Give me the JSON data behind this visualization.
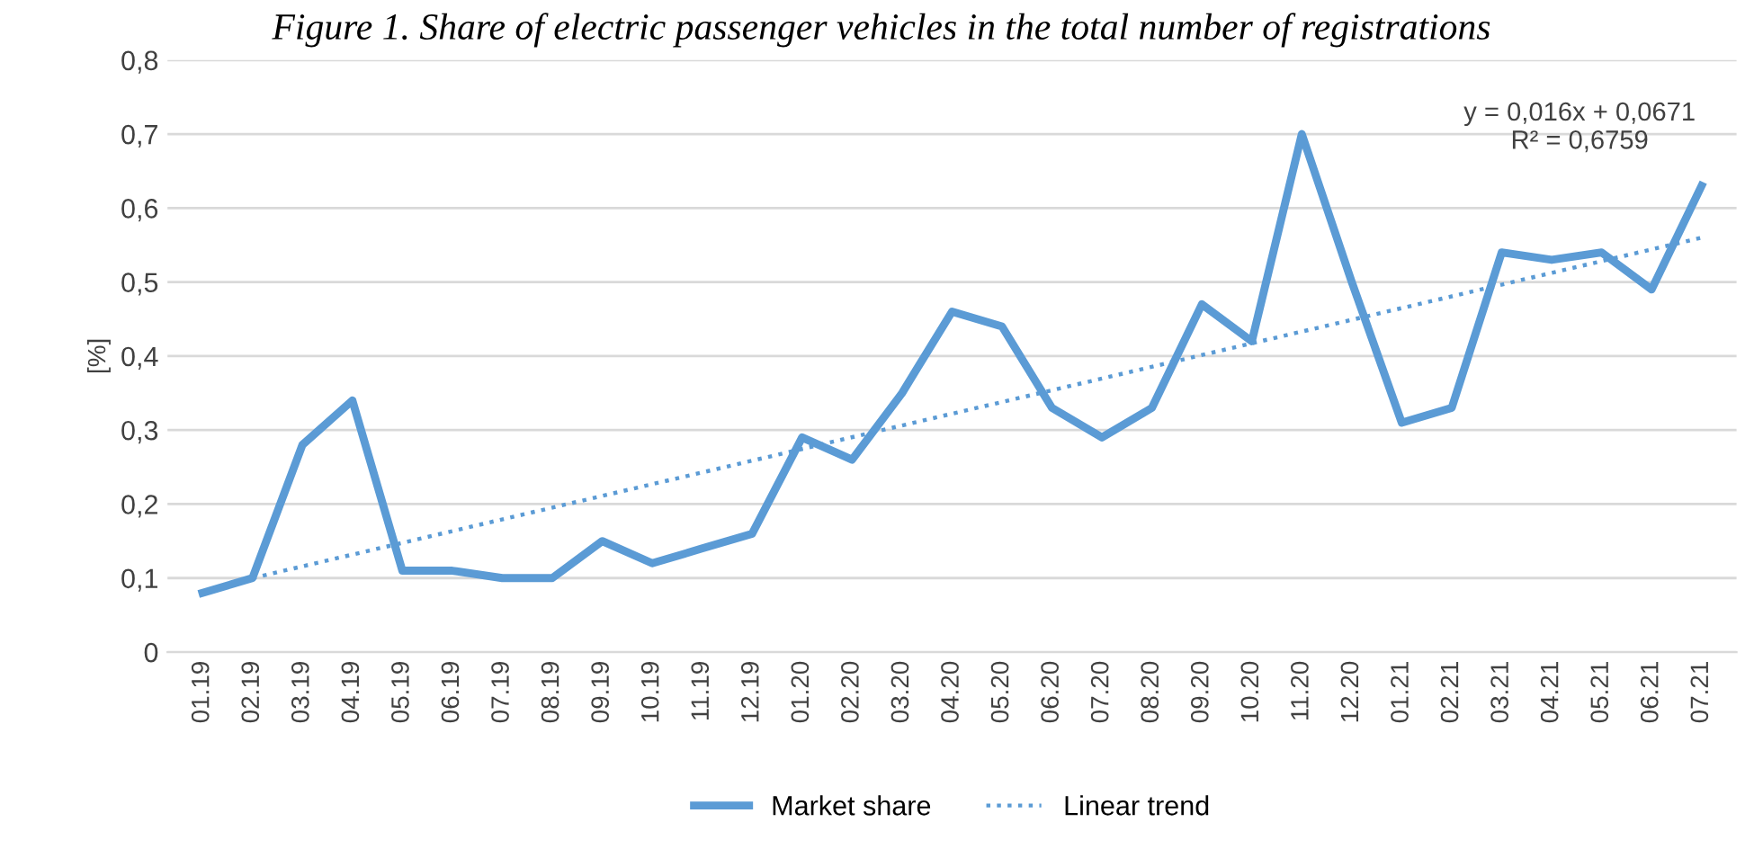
{
  "chart_data": {
    "type": "line",
    "title": "Figure 1. Share of electric passenger vehicles in the total number of registrations",
    "ylabel": "[%]",
    "categories": [
      "01.19",
      "02.19",
      "03.19",
      "04.19",
      "05.19",
      "06.19",
      "07.19",
      "08.19",
      "09.19",
      "10.19",
      "11.19",
      "12.19",
      "01.20",
      "02.20",
      "03.20",
      "04.20",
      "05.20",
      "06.20",
      "07.20",
      "08.20",
      "09.20",
      "10.20",
      "11.20",
      "12.20",
      "01.21",
      "02.21",
      "03.21",
      "04.21",
      "05.21",
      "06.21",
      "07.21"
    ],
    "series": [
      {
        "name": "Market share",
        "color": "#5b9bd5",
        "line_style": "solid",
        "values": [
          0.08,
          0.1,
          0.28,
          0.34,
          0.11,
          0.11,
          0.1,
          0.1,
          0.15,
          0.12,
          0.14,
          0.16,
          0.29,
          0.26,
          0.35,
          0.46,
          0.44,
          0.33,
          0.29,
          0.33,
          0.47,
          0.42,
          0.7,
          0.5,
          0.31,
          0.33,
          0.54,
          0.53,
          0.54,
          0.49,
          0.63
        ]
      },
      {
        "name": "Linear trend",
        "color": "#5b9bd5",
        "line_style": "dotted",
        "x": [
          "02.19",
          "07.21"
        ],
        "values": [
          0.1,
          0.56
        ]
      }
    ],
    "annotations": [
      "y = 0,016x + 0,0671\nR² = 0,6759"
    ],
    "ylim": [
      0,
      0.8
    ],
    "yticks": [
      0,
      {
        "value": 0.1,
        "label": "0,1"
      },
      {
        "value": 0.2,
        "label": "0,2"
      },
      {
        "value": 0.3,
        "label": "0,3"
      },
      {
        "value": 0.4,
        "label": "0,4"
      },
      {
        "value": 0.5,
        "label": "0,5"
      },
      {
        "value": 0.6,
        "label": "0,6"
      },
      {
        "value": 0.7,
        "label": "0,7"
      },
      {
        "value": 0.8,
        "label": "0,8"
      }
    ],
    "grid": "y",
    "legend": "bottom",
    "marker": "none"
  }
}
